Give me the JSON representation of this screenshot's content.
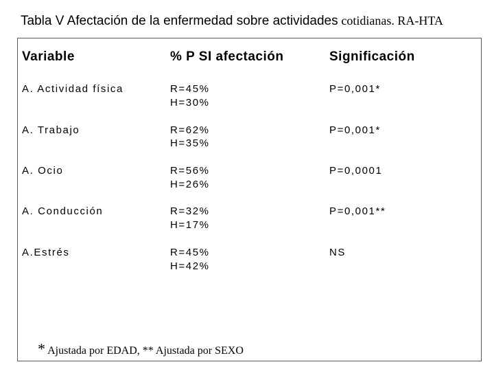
{
  "title": {
    "main": "Tabla V Afectación de la enfermedad sobre actividades",
    "suffix": "cotidianas. RA-HTA"
  },
  "table": {
    "headers": [
      "Variable",
      "% P SI afectación",
      "Significación"
    ],
    "rows": [
      {
        "variable": "A. Actividad física",
        "r": "R=45%",
        "h": "H=30%",
        "sig": "P=0,001*"
      },
      {
        "variable": "A. Trabajo",
        "r": "R=62%",
        "h": "H=35%",
        "sig": "P=0,001*"
      },
      {
        "variable": "A. Ocio",
        "r": "R=56%",
        "h": "H=26%",
        "sig": "P=0,0001"
      },
      {
        "variable": "A. Conducción",
        "r": "R=32%",
        "h": "H=17%",
        "sig": "P=0,001**"
      },
      {
        "variable": "A.Estrés",
        "r": "R=45%",
        "h": "H=42%",
        "sig": "NS"
      }
    ]
  },
  "footnote": {
    "star": "*",
    "text": "Ajustada por EDAD, ** Ajustada por SEXO"
  }
}
